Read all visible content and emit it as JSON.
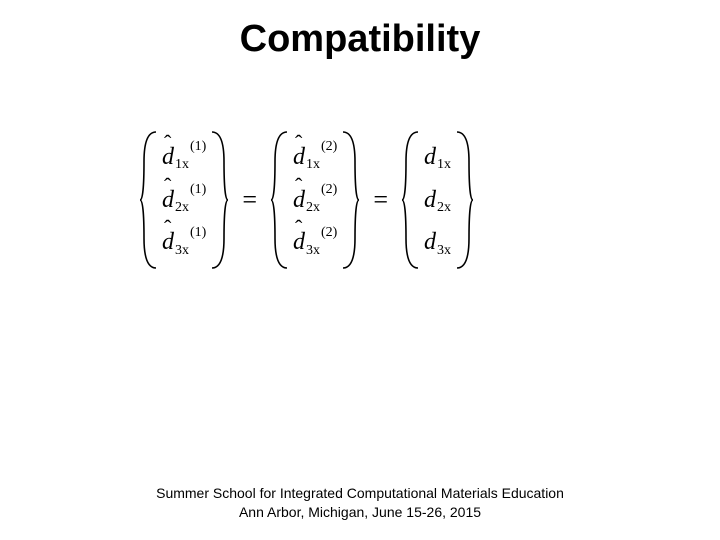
{
  "title": "Compatibility",
  "equation": {
    "brace_height": 140,
    "brace_width": 18,
    "brace_stroke": "#000000",
    "brace_stroke_width": 1.6,
    "vectors": [
      {
        "hat": true,
        "superscript": "(1)",
        "entries": [
          {
            "var": "d",
            "sub": "1x"
          },
          {
            "var": "d",
            "sub": "2x"
          },
          {
            "var": "d",
            "sub": "3x"
          }
        ]
      },
      {
        "hat": true,
        "superscript": "(2)",
        "entries": [
          {
            "var": "d",
            "sub": "1x"
          },
          {
            "var": "d",
            "sub": "2x"
          },
          {
            "var": "d",
            "sub": "3x"
          }
        ]
      },
      {
        "hat": false,
        "superscript": "",
        "entries": [
          {
            "var": "d",
            "sub": "1x"
          },
          {
            "var": "d",
            "sub": "2x"
          },
          {
            "var": "d",
            "sub": "3x"
          }
        ]
      }
    ],
    "relation": "="
  },
  "footer": {
    "line1": "Summer School for Integrated Computational Materials Education",
    "line2": "Ann Arbor, Michigan, June 15-26, 2015"
  },
  "colors": {
    "background": "#ffffff",
    "text": "#000000"
  },
  "typography": {
    "title_fontsize": 38,
    "title_weight": "bold",
    "equation_fontsize": 24,
    "footer_fontsize": 14
  }
}
